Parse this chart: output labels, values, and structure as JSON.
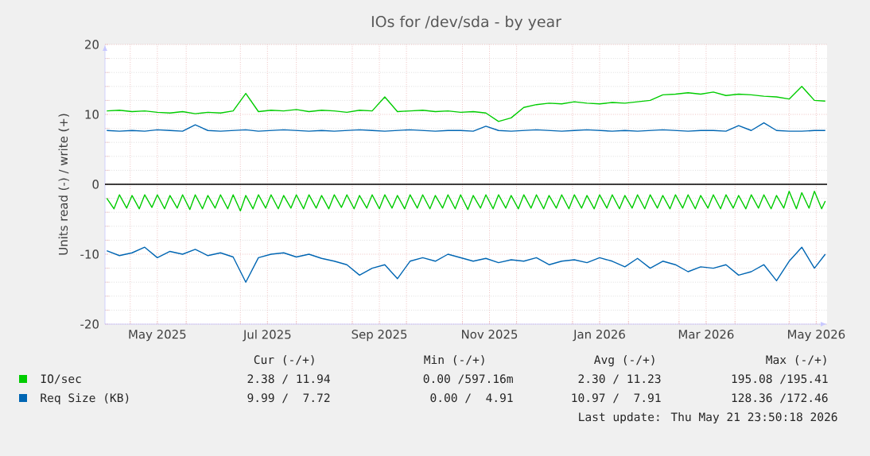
{
  "chart_data": {
    "type": "line",
    "title": "IOs for /dev/sda - by year",
    "ylabel": "Units read (-) / write (+)",
    "xlim": [
      "2025-04-17",
      "2026-05-22"
    ],
    "xticks": [
      {
        "value": "2025-05-01",
        "label": null
      },
      {
        "value": "2025-05-16",
        "label": "May 2025"
      },
      {
        "value": "2025-06-01",
        "label": null
      },
      {
        "value": "2025-07-01",
        "label": null
      },
      {
        "value": "2025-07-16",
        "label": "Jul 2025"
      },
      {
        "value": "2025-08-01",
        "label": null
      },
      {
        "value": "2025-09-01",
        "label": null
      },
      {
        "value": "2025-09-16",
        "label": "Sep 2025"
      },
      {
        "value": "2025-10-01",
        "label": null
      },
      {
        "value": "2025-11-01",
        "label": null
      },
      {
        "value": "2025-11-16",
        "label": "Nov 2025"
      },
      {
        "value": "2025-12-01",
        "label": null
      },
      {
        "value": "2026-01-01",
        "label": null
      },
      {
        "value": "2026-01-16",
        "label": "Jan 2026"
      },
      {
        "value": "2026-02-01",
        "label": null
      },
      {
        "value": "2026-03-01",
        "label": null
      },
      {
        "value": "2026-03-16",
        "label": "Mar 2026"
      },
      {
        "value": "2026-04-01",
        "label": null
      },
      {
        "value": "2026-05-01",
        "label": null
      },
      {
        "value": "2026-05-16",
        "label": "May 2026"
      }
    ],
    "ylim": [
      -20,
      20
    ],
    "yticks": [
      -20,
      -10,
      0,
      10,
      20
    ],
    "grid": true,
    "legend": "bottom",
    "marker": "none",
    "line_style": "solid",
    "x": [
      "2025-04-18",
      "2025-04-25",
      "2025-05-02",
      "2025-05-09",
      "2025-05-16",
      "2025-05-23",
      "2025-05-30",
      "2025-06-06",
      "2025-06-13",
      "2025-06-20",
      "2025-06-27",
      "2025-07-04",
      "2025-07-11",
      "2025-07-18",
      "2025-07-25",
      "2025-08-01",
      "2025-08-08",
      "2025-08-15",
      "2025-08-22",
      "2025-08-29",
      "2025-09-05",
      "2025-09-12",
      "2025-09-19",
      "2025-09-26",
      "2025-10-03",
      "2025-10-10",
      "2025-10-17",
      "2025-10-24",
      "2025-10-31",
      "2025-11-07",
      "2025-11-14",
      "2025-11-21",
      "2025-11-28",
      "2025-12-05",
      "2025-12-12",
      "2025-12-19",
      "2025-12-26",
      "2026-01-02",
      "2026-01-09",
      "2026-01-16",
      "2026-01-23",
      "2026-01-30",
      "2026-02-06",
      "2026-02-13",
      "2026-02-20",
      "2026-02-27",
      "2026-03-06",
      "2026-03-13",
      "2026-03-20",
      "2026-03-27",
      "2026-04-03",
      "2026-04-10",
      "2026-04-17",
      "2026-04-24",
      "2026-05-01",
      "2026-05-08",
      "2026-05-15",
      "2026-05-21"
    ],
    "series": [
      {
        "name": "IO/sec",
        "color": "#00cc00",
        "values": [
          10.5,
          10.6,
          10.4,
          10.5,
          10.3,
          10.2,
          10.4,
          10.1,
          10.3,
          10.2,
          10.5,
          13.0,
          10.4,
          10.6,
          10.5,
          10.7,
          10.4,
          10.6,
          10.5,
          10.3,
          10.6,
          10.5,
          12.5,
          10.4,
          10.5,
          10.6,
          10.4,
          10.5,
          10.3,
          10.4,
          10.2,
          9.0,
          9.5,
          11.0,
          11.4,
          11.6,
          11.5,
          11.8,
          11.6,
          11.5,
          11.7,
          11.6,
          11.8,
          12.0,
          12.8,
          12.9,
          13.1,
          12.9,
          13.2,
          12.7,
          12.9,
          12.8,
          12.6,
          12.5,
          12.2,
          14.0,
          12.0,
          11.9
        ]
      },
      {
        "name": "Req Size (KB)",
        "color": "#0066b3",
        "values": [
          7.7,
          7.6,
          7.7,
          7.6,
          7.8,
          7.7,
          7.6,
          8.5,
          7.7,
          7.6,
          7.7,
          7.8,
          7.6,
          7.7,
          7.8,
          7.7,
          7.6,
          7.7,
          7.6,
          7.7,
          7.8,
          7.7,
          7.6,
          7.7,
          7.8,
          7.7,
          7.6,
          7.7,
          7.7,
          7.6,
          8.3,
          7.7,
          7.6,
          7.7,
          7.8,
          7.7,
          7.6,
          7.7,
          7.8,
          7.7,
          7.6,
          7.7,
          7.6,
          7.7,
          7.8,
          7.7,
          7.6,
          7.7,
          7.7,
          7.6,
          8.4,
          7.7,
          8.8,
          7.7,
          7.6,
          7.6,
          7.7,
          7.7
        ]
      },
      {
        "color": "#0066b3",
        "values": [
          -9.5,
          -10.2,
          -9.8,
          -9.0,
          -10.5,
          -9.6,
          -10.0,
          -9.3,
          -10.2,
          -9.8,
          -10.4,
          -14.0,
          -10.5,
          -10.0,
          -9.8,
          -10.4,
          -10.0,
          -10.6,
          -11.0,
          -11.5,
          -13.0,
          -12.0,
          -11.5,
          -13.5,
          -11.0,
          -10.5,
          -11.0,
          -10.0,
          -10.5,
          -11.0,
          -10.6,
          -11.2,
          -10.8,
          -11.0,
          -10.5,
          -11.5,
          -11.0,
          -10.8,
          -11.2,
          -10.5,
          -11.0,
          -11.8,
          -10.6,
          -12.0,
          -11.0,
          -11.5,
          -12.5,
          -11.8,
          -12.0,
          -11.5,
          -13.0,
          -12.5,
          -11.5,
          -13.8,
          -11.0,
          -9.0,
          -12.0,
          -10.0
        ]
      },
      {
        "color": "#00cc00",
        "x": [
          "2025-04-18",
          "2025-04-22",
          "2025-04-25",
          "2025-04-29",
          "2025-05-02",
          "2025-05-06",
          "2025-05-09",
          "2025-05-13",
          "2025-05-16",
          "2025-05-20",
          "2025-05-23",
          "2025-05-27",
          "2025-05-30",
          "2025-06-03",
          "2025-06-06",
          "2025-06-10",
          "2025-06-13",
          "2025-06-17",
          "2025-06-20",
          "2025-06-24",
          "2025-06-27",
          "2025-07-01",
          "2025-07-04",
          "2025-07-08",
          "2025-07-11",
          "2025-07-15",
          "2025-07-18",
          "2025-07-22",
          "2025-07-25",
          "2025-07-29",
          "2025-08-01",
          "2025-08-05",
          "2025-08-08",
          "2025-08-12",
          "2025-08-15",
          "2025-08-19",
          "2025-08-22",
          "2025-08-26",
          "2025-08-29",
          "2025-09-02",
          "2025-09-05",
          "2025-09-09",
          "2025-09-12",
          "2025-09-16",
          "2025-09-19",
          "2025-09-23",
          "2025-09-26",
          "2025-09-30",
          "2025-10-03",
          "2025-10-07",
          "2025-10-10",
          "2025-10-14",
          "2025-10-17",
          "2025-10-21",
          "2025-10-24",
          "2025-10-28",
          "2025-10-31",
          "2025-11-04",
          "2025-11-07",
          "2025-11-11",
          "2025-11-14",
          "2025-11-18",
          "2025-11-21",
          "2025-11-25",
          "2025-11-28",
          "2025-12-02",
          "2025-12-05",
          "2025-12-09",
          "2025-12-12",
          "2025-12-16",
          "2025-12-19",
          "2025-12-23",
          "2025-12-26",
          "2025-12-30",
          "2026-01-02",
          "2026-01-06",
          "2026-01-09",
          "2026-01-13",
          "2026-01-16",
          "2026-01-20",
          "2026-01-23",
          "2026-01-27",
          "2026-01-30",
          "2026-02-03",
          "2026-02-06",
          "2026-02-10",
          "2026-02-13",
          "2026-02-17",
          "2026-02-20",
          "2026-02-24",
          "2026-02-27",
          "2026-03-03",
          "2026-03-06",
          "2026-03-10",
          "2026-03-13",
          "2026-03-17",
          "2026-03-20",
          "2026-03-24",
          "2026-03-27",
          "2026-03-31",
          "2026-04-03",
          "2026-04-07",
          "2026-04-10",
          "2026-04-14",
          "2026-04-17",
          "2026-04-21",
          "2026-04-24",
          "2026-04-28",
          "2026-05-01",
          "2026-05-05",
          "2026-05-08",
          "2026-05-12",
          "2026-05-15",
          "2026-05-19",
          "2026-05-21"
        ],
        "values": [
          -2.0,
          -3.5,
          -1.5,
          -3.4,
          -1.6,
          -3.5,
          -1.5,
          -3.3,
          -1.5,
          -3.5,
          -1.6,
          -3.4,
          -1.5,
          -3.6,
          -1.5,
          -3.5,
          -1.6,
          -3.4,
          -1.5,
          -3.5,
          -1.5,
          -3.8,
          -1.6,
          -3.5,
          -1.5,
          -3.4,
          -1.5,
          -3.5,
          -1.6,
          -3.4,
          -1.5,
          -3.5,
          -1.5,
          -3.4,
          -1.6,
          -3.5,
          -1.5,
          -3.3,
          -1.5,
          -3.5,
          -1.6,
          -3.4,
          -1.5,
          -3.5,
          -1.5,
          -3.4,
          -1.6,
          -3.5,
          -1.5,
          -3.4,
          -1.5,
          -3.5,
          -1.6,
          -3.4,
          -1.5,
          -3.5,
          -1.5,
          -3.6,
          -1.6,
          -3.4,
          -1.5,
          -3.5,
          -1.5,
          -3.4,
          -1.6,
          -3.5,
          -1.5,
          -3.4,
          -1.5,
          -3.5,
          -1.6,
          -3.4,
          -1.5,
          -3.5,
          -1.5,
          -3.4,
          -1.6,
          -3.5,
          -1.5,
          -3.4,
          -1.5,
          -3.5,
          -1.6,
          -3.4,
          -1.5,
          -3.5,
          -1.5,
          -3.4,
          -1.6,
          -3.5,
          -1.5,
          -3.4,
          -1.5,
          -3.5,
          -1.6,
          -3.4,
          -1.5,
          -3.5,
          -1.5,
          -3.4,
          -1.6,
          -3.5,
          -1.5,
          -3.4,
          -1.5,
          -3.5,
          -1.6,
          -3.4,
          -1.0,
          -3.5,
          -1.2,
          -3.4,
          -1.0,
          -3.5,
          -2.4
        ]
      }
    ],
    "ref_lines": [
      {
        "axis": "y",
        "value": 0,
        "color": "#000000"
      }
    ],
    "annotations": [
      "Cur (-/+)",
      "Min (-/+)",
      "Avg (-/+)",
      "Max (-/+)",
      "2.38 / 11.94",
      "0.00 /597.16m",
      "2.30 / 11.23",
      "195.08 /195.41",
      "9.99 /  7.72",
      "0.00 /  4.91",
      "10.97 /  7.91",
      "128.36 /172.46",
      "Last update: Thu May 21 23:50:18 2026"
    ]
  }
}
